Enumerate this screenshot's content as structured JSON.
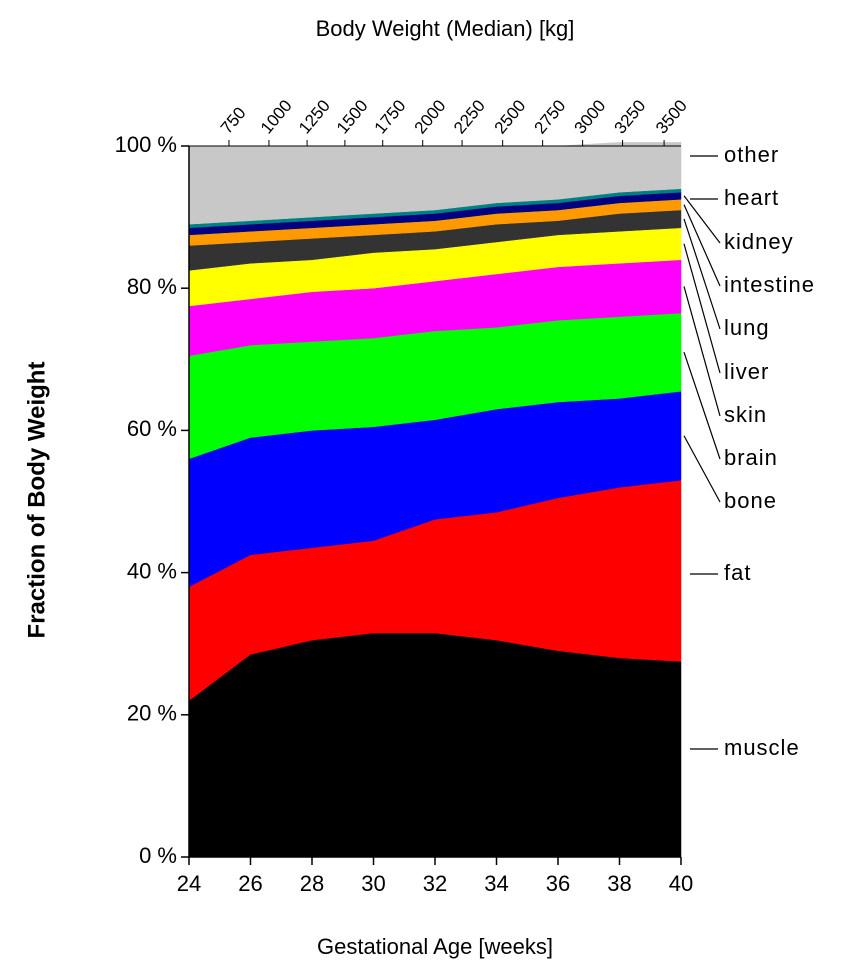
{
  "chart_data": {
    "type": "stacked-area",
    "title": "Body Weight (Median) [kg]",
    "xlabel": "Gestational Age [weeks]",
    "ylabel": "Fraction of Body Weight",
    "x": [
      24,
      26,
      28,
      30,
      32,
      34,
      36,
      38,
      40
    ],
    "xlim": [
      24,
      40
    ],
    "xticks": [
      24,
      26,
      28,
      30,
      32,
      34,
      36,
      38,
      40
    ],
    "ylim": [
      0,
      100
    ],
    "yticks": [
      {
        "value": 0,
        "label": "0 %"
      },
      {
        "value": 20,
        "label": "20 %"
      },
      {
        "value": 40,
        "label": "40 %"
      },
      {
        "value": 60,
        "label": "60 %"
      },
      {
        "value": 80,
        "label": "80 %"
      },
      {
        "value": 100,
        "label": "100 %"
      }
    ],
    "x2ticks": [
      {
        "value": 25.3,
        "label": "750"
      },
      {
        "value": 26.6,
        "label": "1000"
      },
      {
        "value": 27.84,
        "label": "1250"
      },
      {
        "value": 29.07,
        "label": "1500"
      },
      {
        "value": 30.3,
        "label": "1750"
      },
      {
        "value": 31.6,
        "label": "2000"
      },
      {
        "value": 32.88,
        "label": "2250"
      },
      {
        "value": 34.2,
        "label": "2500"
      },
      {
        "value": 35.5,
        "label": "2750"
      },
      {
        "value": 36.8,
        "label": "3000"
      },
      {
        "value": 38.1,
        "label": "3250"
      },
      {
        "value": 39.45,
        "label": "3500"
      }
    ],
    "series": [
      {
        "name": "muscle",
        "color": "#000000",
        "values": [
          22,
          28.5,
          30.5,
          31.5,
          31.5,
          30.5,
          29,
          28,
          27.5
        ]
      },
      {
        "name": "fat",
        "color": "#ff0000",
        "values": [
          16,
          14,
          13,
          13,
          16,
          18,
          21.5,
          24,
          25.5
        ]
      },
      {
        "name": "bone",
        "color": "#0000ff",
        "values": [
          18,
          16.5,
          16.5,
          16,
          14,
          14.5,
          13.5,
          12.5,
          12.5
        ]
      },
      {
        "name": "brain",
        "color": "#00ff00",
        "values": [
          14.5,
          13,
          12.5,
          12.5,
          12.5,
          11.5,
          11.5,
          11.5,
          11
        ]
      },
      {
        "name": "skin",
        "color": "#ff00ff",
        "values": [
          7,
          6.5,
          7,
          7,
          7,
          7.5,
          7.5,
          7.5,
          7.5
        ]
      },
      {
        "name": "liver",
        "color": "#ffff00",
        "values": [
          5,
          5,
          4.5,
          5,
          4.5,
          4.5,
          4.5,
          4.5,
          4.5
        ]
      },
      {
        "name": "lung",
        "color": "#333333",
        "values": [
          3.5,
          3,
          3,
          2.5,
          2.5,
          2.5,
          2,
          2.5,
          2.5
        ]
      },
      {
        "name": "intestine",
        "color": "#ff9900",
        "values": [
          1.5,
          1.5,
          1.5,
          1.5,
          1.5,
          1.5,
          1.5,
          1.5,
          1.5
        ]
      },
      {
        "name": "kidney",
        "color": "#000080",
        "values": [
          1,
          1,
          1,
          1,
          1,
          1,
          1,
          1,
          1
        ]
      },
      {
        "name": "heart",
        "color": "#008080",
        "values": [
          0.5,
          0.5,
          0.5,
          0.5,
          0.5,
          0.5,
          0.5,
          0.5,
          0.5
        ]
      },
      {
        "name": "other",
        "color": "#c8c8c8",
        "values": [
          11,
          10.5,
          10,
          9.5,
          9,
          8,
          7.5,
          7,
          6.5
        ]
      }
    ]
  }
}
